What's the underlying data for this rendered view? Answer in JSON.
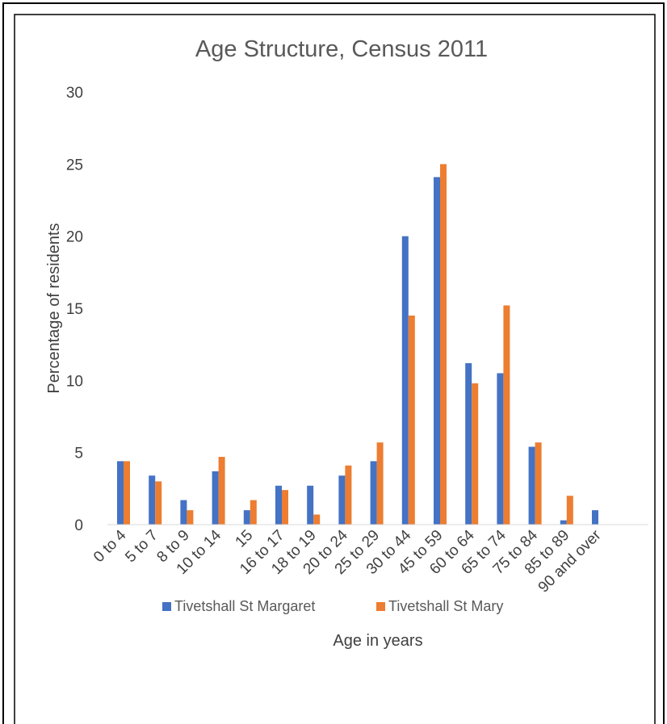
{
  "chart_data": {
    "type": "bar",
    "title": "Age Structure, Census 2011",
    "xlabel": "Age in years",
    "ylabel": "Percentage of residents",
    "ylim": [
      0,
      30
    ],
    "yticks": [
      0,
      5,
      10,
      15,
      20,
      25,
      30
    ],
    "grid": false,
    "legend_position": "bottom",
    "categories": [
      "0 to 4",
      "5 to 7",
      "8 to 9",
      "10 to 14",
      "15",
      "16 to 17",
      "18 to 19",
      "20 to 24",
      "25 to 29",
      "30 to 44",
      "45 to 59",
      "60 to 64",
      "65 to 74",
      "75 to 84",
      "85 to 89",
      "90 and over"
    ],
    "series": [
      {
        "name": "Tivetshall St Margaret",
        "color": "#4472C4",
        "values": [
          4.4,
          3.4,
          1.7,
          3.7,
          1.0,
          2.7,
          2.7,
          3.4,
          4.4,
          20.0,
          24.1,
          11.2,
          10.5,
          5.4,
          0.3,
          1.0
        ]
      },
      {
        "name": "Tivetshall St Mary",
        "color": "#ED7D31",
        "values": [
          4.4,
          3.0,
          1.0,
          4.7,
          1.7,
          2.4,
          0.7,
          4.1,
          5.7,
          14.5,
          25.0,
          9.8,
          15.2,
          5.7,
          2.0,
          0.0
        ]
      }
    ]
  }
}
